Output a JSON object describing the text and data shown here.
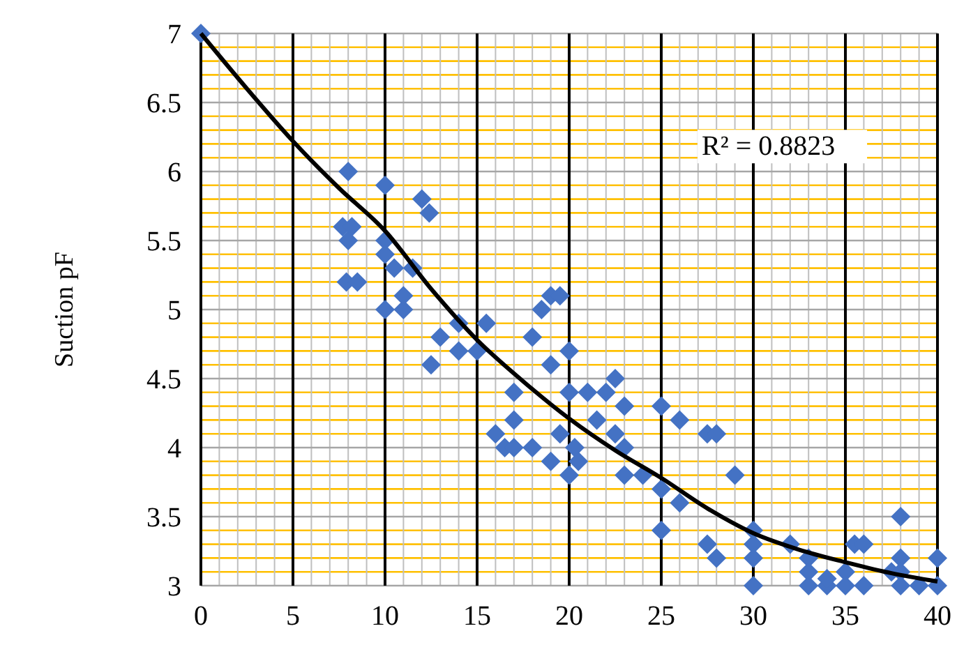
{
  "chart_data": {
    "type": "scatter",
    "ylabel": "Suction pF",
    "xlim": [
      0,
      40
    ],
    "ylim": [
      3,
      7
    ],
    "xticks": [
      0,
      {
        "value": 1,
        "label": null
      },
      {
        "value": 2,
        "label": null
      },
      {
        "value": 3,
        "label": null
      },
      {
        "value": 4,
        "label": null
      },
      5,
      {
        "value": 6,
        "label": null
      },
      {
        "value": 7,
        "label": null
      },
      {
        "value": 8,
        "label": null
      },
      {
        "value": 9,
        "label": null
      },
      10,
      {
        "value": 11,
        "label": null
      },
      {
        "value": 12,
        "label": null
      },
      {
        "value": 13,
        "label": null
      },
      {
        "value": 14,
        "label": null
      },
      15,
      {
        "value": 16,
        "label": null
      },
      {
        "value": 17,
        "label": null
      },
      {
        "value": 18,
        "label": null
      },
      {
        "value": 19,
        "label": null
      },
      20,
      {
        "value": 21,
        "label": null
      },
      {
        "value": 22,
        "label": null
      },
      {
        "value": 23,
        "label": null
      },
      {
        "value": 24,
        "label": null
      },
      25,
      {
        "value": 26,
        "label": null
      },
      {
        "value": 27,
        "label": null
      },
      {
        "value": 28,
        "label": null
      },
      {
        "value": 29,
        "label": null
      },
      30,
      {
        "value": 31,
        "label": null
      },
      {
        "value": 32,
        "label": null
      },
      {
        "value": 33,
        "label": null
      },
      {
        "value": 34,
        "label": null
      },
      35,
      {
        "value": 36,
        "label": null
      },
      {
        "value": 37,
        "label": null
      },
      {
        "value": 38,
        "label": null
      },
      {
        "value": 39,
        "label": null
      },
      40
    ],
    "yticks": [
      3,
      {
        "value": 3.1,
        "label": null
      },
      {
        "value": 3.2,
        "label": null
      },
      {
        "value": 3.3,
        "label": null
      },
      {
        "value": 3.4,
        "label": null
      },
      3.5,
      {
        "value": 3.6,
        "label": null
      },
      {
        "value": 3.7,
        "label": null
      },
      {
        "value": 3.8,
        "label": null
      },
      {
        "value": 3.9,
        "label": null
      },
      4,
      {
        "value": 4.1,
        "label": null
      },
      {
        "value": 4.2,
        "label": null
      },
      {
        "value": 4.3,
        "label": null
      },
      {
        "value": 4.4,
        "label": null
      },
      4.5,
      {
        "value": 4.6,
        "label": null
      },
      {
        "value": 4.7,
        "label": null
      },
      {
        "value": 4.8,
        "label": null
      },
      {
        "value": 4.9,
        "label": null
      },
      5,
      {
        "value": 5.1,
        "label": null
      },
      {
        "value": 5.2,
        "label": null
      },
      {
        "value": 5.3,
        "label": null
      },
      {
        "value": 5.4,
        "label": null
      },
      5.5,
      {
        "value": 5.6,
        "label": null
      },
      {
        "value": 5.7,
        "label": null
      },
      {
        "value": 5.8,
        "label": null
      },
      {
        "value": 5.9,
        "label": null
      },
      6,
      {
        "value": 6.1,
        "label": null
      },
      {
        "value": 6.2,
        "label": null
      },
      {
        "value": 6.3,
        "label": null
      },
      {
        "value": 6.4,
        "label": null
      },
      6.5,
      {
        "value": 6.6,
        "label": null
      },
      {
        "value": 6.7,
        "label": null
      },
      {
        "value": 6.8,
        "label": null
      },
      {
        "value": 6.9,
        "label": null
      },
      7
    ],
    "grid": true,
    "annotations": [
      "R² = 0.8823"
    ],
    "series": [
      {
        "type": "scatter",
        "marker": "diamond",
        "color": "#4472c4",
        "x": [
          0,
          7.7,
          8,
          8,
          8.2,
          7.9,
          8.5,
          10,
          10,
          10,
          10,
          10.5,
          11,
          11,
          11.5,
          12,
          12.4,
          12.5,
          13,
          14,
          14,
          15,
          15.5,
          16,
          16.5,
          17,
          17,
          17,
          18,
          18,
          18.5,
          19,
          19,
          19,
          19.5,
          19.5,
          20,
          20,
          20,
          20.3,
          20.5,
          21,
          21.5,
          22,
          22.5,
          22.5,
          23,
          23,
          23,
          24,
          25,
          25,
          25,
          26,
          26,
          27.5,
          27.5,
          28,
          28,
          29,
          30,
          30,
          30,
          30,
          32,
          33,
          33,
          33,
          34,
          34,
          35,
          35,
          35.5,
          36,
          36,
          37.5,
          38,
          38,
          38,
          38,
          39,
          40,
          40
        ],
        "values": [
          7,
          5.6,
          6,
          5.5,
          5.6,
          5.2,
          5.2,
          5.9,
          5.5,
          5.4,
          5,
          5.3,
          5,
          5.1,
          5.3,
          5.8,
          5.7,
          4.6,
          4.8,
          4.9,
          4.7,
          4.7,
          4.9,
          4.1,
          4,
          4.4,
          4.2,
          4,
          4.8,
          4,
          5,
          5.1,
          4.6,
          3.9,
          5.1,
          4.1,
          4.7,
          4.4,
          3.8,
          4,
          3.9,
          4.4,
          4.2,
          4.4,
          4.5,
          4.1,
          4.3,
          4,
          3.8,
          3.8,
          4.3,
          3.7,
          3.4,
          4.2,
          3.6,
          4.1,
          3.3,
          4.1,
          3.2,
          3.8,
          3.4,
          3.3,
          3.2,
          3,
          3.3,
          3.2,
          3.1,
          3,
          3,
          3.05,
          3.1,
          3,
          3.3,
          3.3,
          3,
          3.1,
          3.5,
          3.2,
          3.1,
          3,
          3,
          3.2,
          3
        ]
      },
      {
        "type": "line",
        "marker": "none",
        "color": "#000000",
        "x": [
          0,
          2.5,
          5,
          7.5,
          10,
          12.5,
          15,
          17.5,
          20,
          22.5,
          25,
          27.5,
          30,
          32.5,
          35,
          37.5,
          40
        ],
        "values": [
          7,
          6.6,
          6.22,
          5.88,
          5.57,
          5.15,
          4.78,
          4.48,
          4.21,
          3.98,
          3.78,
          3.56,
          3.38,
          3.26,
          3.17,
          3.09,
          3.03
        ]
      }
    ]
  }
}
